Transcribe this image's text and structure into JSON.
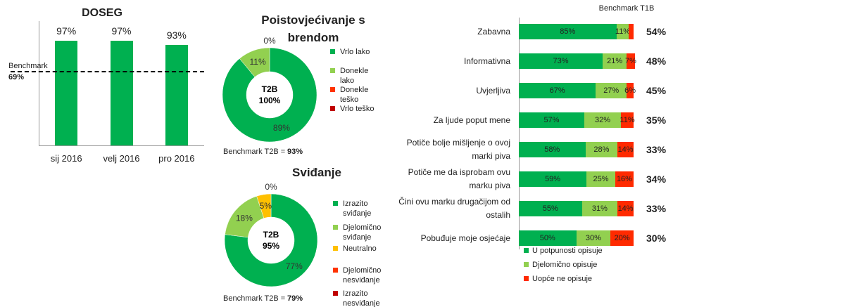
{
  "chart_data": [
    {
      "type": "bar",
      "title": "DOSEG",
      "categories": [
        "sij 2016",
        "velj 2016",
        "pro 2016"
      ],
      "values": [
        97,
        97,
        93
      ],
      "value_labels": [
        "97%",
        "97%",
        "93%"
      ],
      "color": "#00b050",
      "ylim": [
        0,
        100
      ],
      "benchmark": {
        "label": "Benchmark",
        "value": 69,
        "value_label": "69%"
      }
    },
    {
      "type": "donut",
      "title": "Poistovjećivanje  s brendom",
      "categories": [
        "Vrlo lako",
        "Donekle lako",
        "Donekle teško",
        "Vrlo teško"
      ],
      "values": [
        89,
        11,
        0,
        0
      ],
      "value_labels": [
        "89%",
        "11%",
        null,
        "0%"
      ],
      "colors": [
        "#00b050",
        "#92d050",
        "#ff3300",
        "#c00000"
      ],
      "center_label": "T2B",
      "center_value": "100%",
      "benchmark_label": "Benchmark T2B =",
      "benchmark_value": "93%"
    },
    {
      "type": "donut",
      "title": "Sviđanje",
      "categories": [
        "Izrazito sviđanje",
        "Djelomično sviđanje",
        "Neutralno",
        "Djelomično nesviđanje",
        "Izrazito nesviđanje"
      ],
      "values": [
        77,
        18,
        5,
        0,
        0
      ],
      "value_labels": [
        "77%",
        "18%",
        "5%",
        "0%",
        null
      ],
      "colors": [
        "#00b050",
        "#92d050",
        "#ffc000",
        "#ff3300",
        "#c00000"
      ],
      "center_label": "T2B",
      "center_value": "95%",
      "benchmark_label": "Benchmark T2B =",
      "benchmark_value": "79%"
    },
    {
      "type": "stacked_bar",
      "categories": [
        "Zabavna",
        "Informativna",
        "Uvjerljiva",
        "Za ljude poput mene",
        "Potiče bolje mišljenje o ovoj marki piva",
        "Potiče me da isprobam ovu marku piva",
        "Čini ovu marku drugačijom od ostalih",
        "Pobuđuje moje osjećaje"
      ],
      "xlim": [
        0,
        100
      ],
      "series": [
        {
          "name": "U potpunosti opisuje",
          "color": "#00b050",
          "values": [
            85,
            73,
            67,
            57,
            58,
            59,
            55,
            50
          ],
          "value_labels": [
            "85%",
            "73%",
            "67%",
            "57%",
            "58%",
            "59%",
            "55%",
            "50%"
          ]
        },
        {
          "name": "Djelomično opisuje",
          "color": "#92d050",
          "values": [
            11,
            21,
            27,
            32,
            28,
            25,
            31,
            30
          ],
          "value_labels": [
            "11%",
            "21%",
            "27%",
            "32%",
            "28%",
            "25%",
            "31%",
            "30%"
          ]
        },
        {
          "name": "Uopće ne opisuje",
          "color": "#ff2a00",
          "values": [
            4,
            7,
            6,
            11,
            14,
            16,
            14,
            20
          ],
          "value_labels": [
            null,
            "7%",
            "6%",
            "11%",
            "14%",
            "16%",
            "14%",
            "20%"
          ]
        }
      ],
      "benchmark": {
        "name": "Benchmark T1B",
        "values": [
          54,
          48,
          45,
          35,
          33,
          34,
          33,
          30
        ],
        "value_labels": [
          "54%",
          "48%",
          "45%",
          "35%",
          "33%",
          "34%",
          "33%",
          "30%"
        ]
      }
    }
  ]
}
